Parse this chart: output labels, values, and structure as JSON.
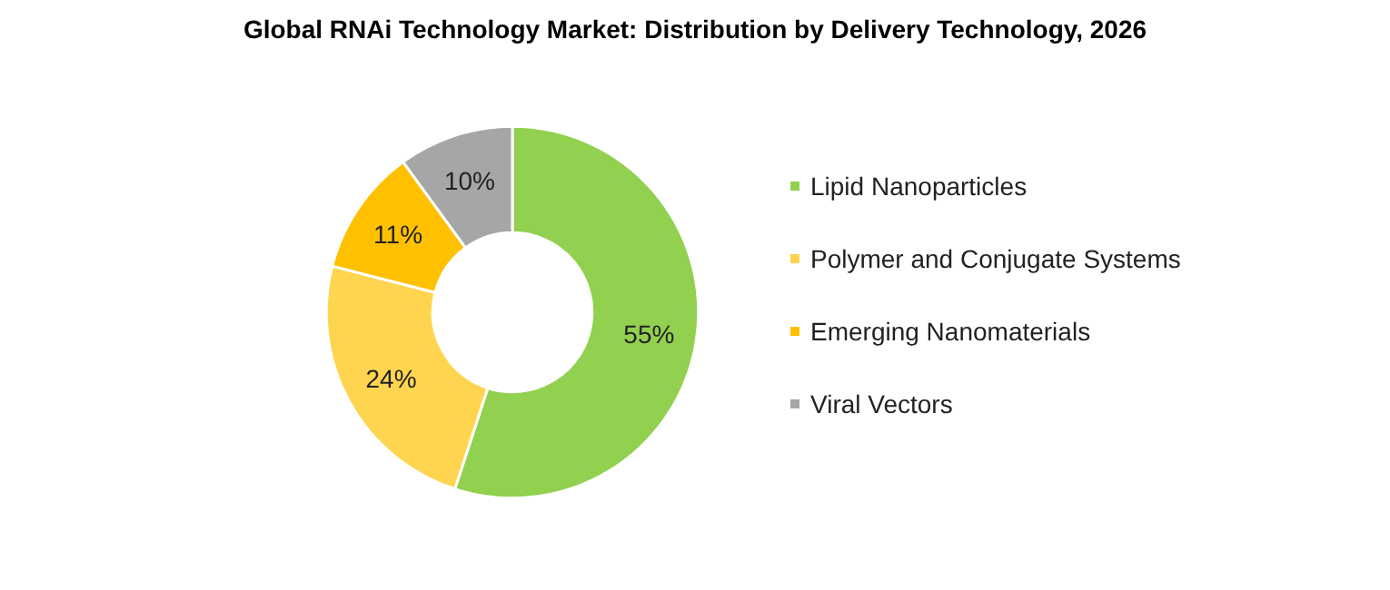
{
  "chart_data": {
    "type": "donut",
    "title": "Global RNAi Technology Market: Distribution by Delivery Technology, 2026",
    "categories": [
      "Lipid Nanoparticles",
      "Polymer and Conjugate Systems",
      "Emerging Nanomaterials",
      "Viral Vectors"
    ],
    "values": [
      55,
      24,
      11,
      10
    ],
    "colors": [
      "#92d050",
      "#ffd54f",
      "#ffc000",
      "#a6a6a6"
    ],
    "value_labels": [
      "55%",
      "24%",
      "11%",
      "10%"
    ],
    "legend": "right"
  }
}
